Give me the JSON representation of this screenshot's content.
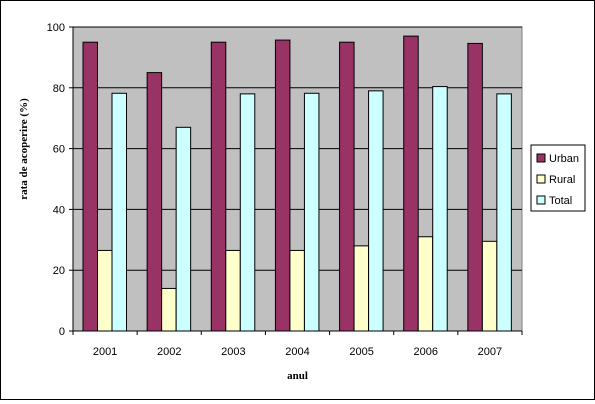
{
  "chart_data": {
    "type": "bar",
    "title": "",
    "xlabel": "anul",
    "ylabel": "rata de acoperire (%)",
    "categories": [
      "2001",
      "2002",
      "2003",
      "2004",
      "2005",
      "2006",
      "2007"
    ],
    "ylim": [
      0,
      100
    ],
    "yticks": [
      0,
      20,
      40,
      60,
      80,
      100
    ],
    "grid": true,
    "legend_position": "right",
    "series": [
      {
        "name": "Urban",
        "color": "#993366",
        "values": [
          95,
          85,
          95,
          95.7,
          95,
          97,
          94.6
        ]
      },
      {
        "name": "Rural",
        "color": "#FFFFCC",
        "values": [
          26.5,
          14,
          26.5,
          26.5,
          28,
          31,
          29.5
        ]
      },
      {
        "name": "Total",
        "color": "#CCFFFF",
        "values": [
          78.2,
          67,
          78,
          78.2,
          79,
          80.4,
          78
        ]
      }
    ],
    "plot_background": "#C0C0C0"
  }
}
